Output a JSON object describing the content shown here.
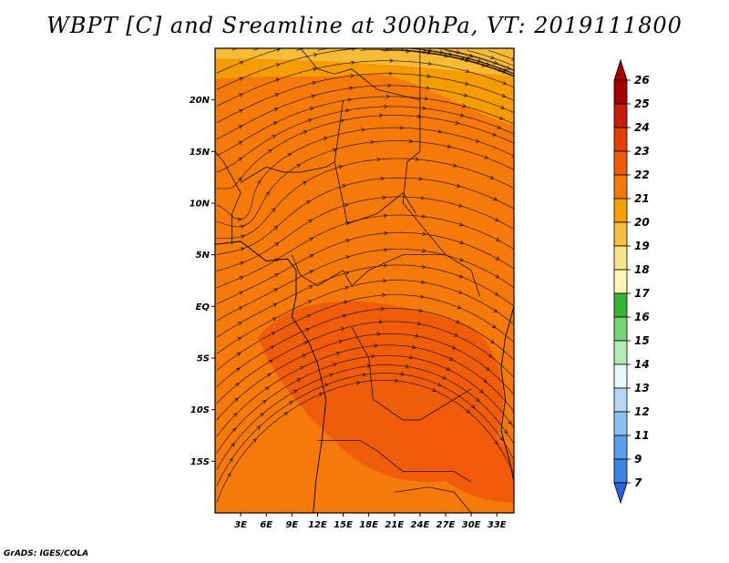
{
  "chart_data": {
    "type": "heatmap",
    "title": "WBPT [C] and Sreamline at 300hPa, VT: 2019111800",
    "overlay": "streamlines",
    "x_axis": {
      "range": [
        0,
        35
      ],
      "ticks": [
        3,
        6,
        9,
        12,
        15,
        18,
        21,
        24,
        27,
        30,
        33
      ],
      "tick_labels": [
        "3E",
        "6E",
        "9E",
        "12E",
        "15E",
        "18E",
        "21E",
        "24E",
        "27E",
        "30E",
        "33E"
      ]
    },
    "y_axis": {
      "range": [
        -20,
        25
      ],
      "ticks": [
        20,
        15,
        10,
        5,
        0,
        -5,
        -10,
        -15
      ],
      "tick_labels": [
        "20N",
        "15N",
        "10N",
        "5N",
        "EQ",
        "5S",
        "10S",
        "15S"
      ]
    },
    "colorbar": {
      "labels": [
        "26",
        "25",
        "24",
        "23",
        "22",
        "21",
        "20",
        "19",
        "18",
        "17",
        "16",
        "15",
        "14",
        "13",
        "12",
        "11",
        "9",
        "7"
      ],
      "colors": [
        "#a50000",
        "#c81e00",
        "#e63c00",
        "#f05a0a",
        "#f57a0a",
        "#f5a000",
        "#f5c040",
        "#f8e48a",
        "#fff5b4",
        "#36b436",
        "#76d276",
        "#b4eab4",
        "#e6f8fa",
        "#b4d8f5",
        "#8cc0f2",
        "#5aa0ee",
        "#3c82e6",
        "#2864dc"
      ],
      "extends": "both"
    },
    "dominant_values_C": {
      "north_band": 21,
      "central": 22,
      "equatorial_core": 23
    },
    "grid": false
  },
  "footer": {
    "credit": "GrADS: IGES/COLA"
  }
}
